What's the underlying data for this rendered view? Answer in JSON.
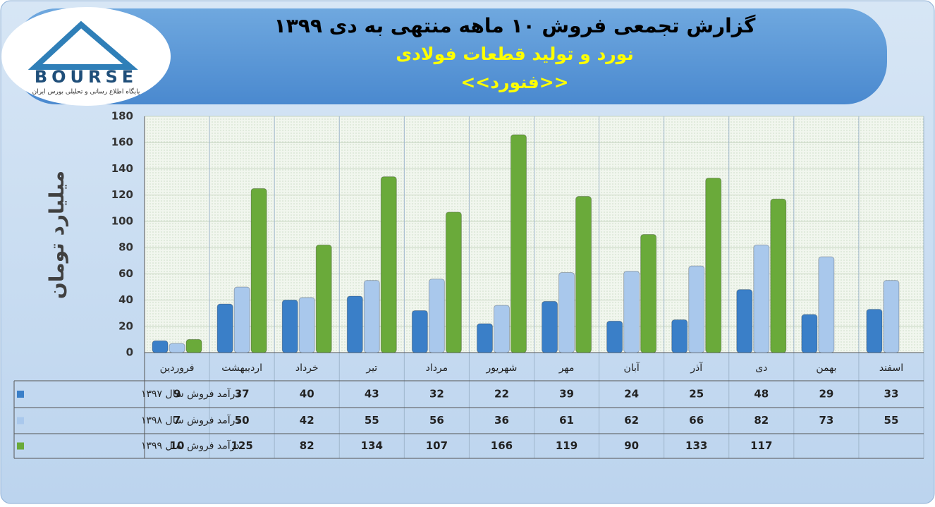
{
  "logo": {
    "name": "BOURSE",
    "tagline": "پایگاه اطلاع رسانی و تحلیلی بورس ایران"
  },
  "chart_data": {
    "type": "bar",
    "title": "گزارش تجمعی فروش ۱۰ ماهه منتهی به دی ۱۳۹۹",
    "subtitle": "نورد و تولید قطعات فولادی",
    "subtitle2": "<<فنورد>>",
    "y_label": "میلیارد تومان",
    "categories": [
      "فروردین",
      "اردیبهشت",
      "خرداد",
      "تیر",
      "مرداد",
      "شهریور",
      "مهر",
      "آبان",
      "آذر",
      "دی",
      "بهمن",
      "اسفند"
    ],
    "series": [
      {
        "name": "درآمد فروش سال ۱۳۹۷",
        "color": "#3a7fc8",
        "values": [
          9,
          37,
          40,
          43,
          32,
          22,
          39,
          24,
          25,
          48,
          29,
          33
        ]
      },
      {
        "name": "درآمد فروش سال ۱۳۹۸",
        "color": "#a9c8ec",
        "values": [
          7,
          50,
          42,
          55,
          56,
          36,
          61,
          62,
          66,
          82,
          73,
          55
        ]
      },
      {
        "name": "درآمد فروش سال ۱۳۹۹",
        "color": "#6aaa3a",
        "values": [
          10,
          125,
          82,
          134,
          107,
          166,
          119,
          90,
          133,
          117,
          null,
          null
        ]
      }
    ],
    "ylim": [
      0,
      180
    ],
    "yticks": [
      0,
      20,
      40,
      60,
      80,
      100,
      120,
      140,
      160,
      180
    ],
    "grid": true
  }
}
